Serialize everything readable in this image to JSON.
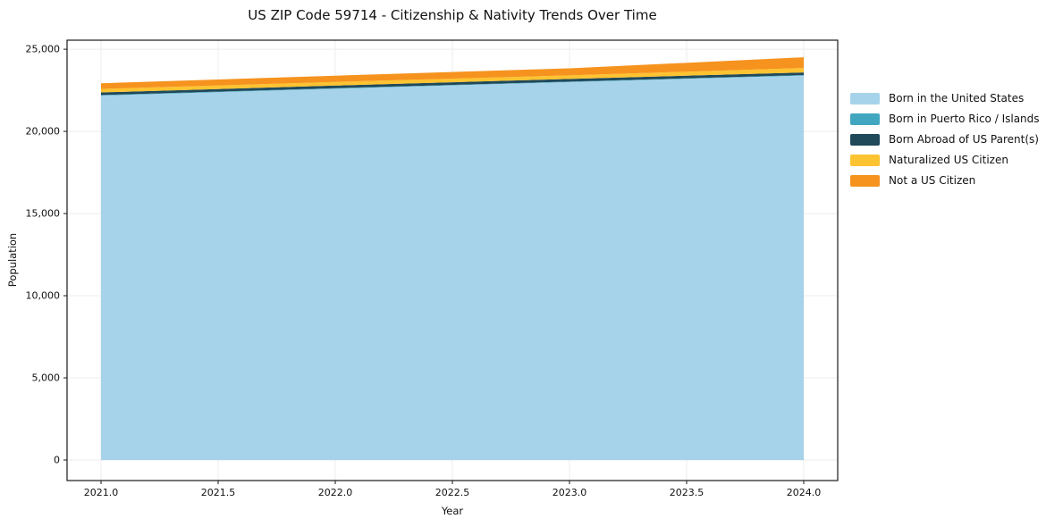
{
  "chart_data": {
    "type": "area",
    "stacked": true,
    "title": "US ZIP Code 59714 - Citizenship & Nativity Trends Over Time",
    "xlabel": "Year",
    "ylabel": "Population",
    "x": [
      2021,
      2022,
      2023,
      2024
    ],
    "series": [
      {
        "name": "Born in the United States",
        "color": "#a6d3ea",
        "values": [
          22180,
          22600,
          23000,
          23400
        ]
      },
      {
        "name": "Born in Puerto Rico / Islands",
        "color": "#41a6c0",
        "values": [
          30,
          30,
          30,
          30
        ]
      },
      {
        "name": "Born Abroad of US Parent(s)",
        "color": "#20495a",
        "values": [
          160,
          160,
          160,
          160
        ]
      },
      {
        "name": "Naturalized US Citizen",
        "color": "#fdc330",
        "values": [
          210,
          220,
          220,
          270
        ]
      },
      {
        "name": "Not a US Citizen",
        "color": "#f6931e",
        "values": [
          350,
          380,
          430,
          650
        ]
      }
    ],
    "xticks": [
      2021.0,
      2021.5,
      2022.0,
      2022.5,
      2023.0,
      2023.5,
      2024.0
    ],
    "xtick_labels": [
      "2021.0",
      "2021.5",
      "2022.0",
      "2022.5",
      "2023.0",
      "2023.5",
      "2024.0"
    ],
    "yticks": [
      0,
      5000,
      10000,
      15000,
      20000,
      25000
    ],
    "ytick_labels": [
      "0",
      "5,000",
      "10,000",
      "15,000",
      "20,000",
      "25,000"
    ],
    "xlim": [
      2020.855,
      2024.145
    ],
    "ylim": [
      -1250,
      25550
    ],
    "grid": true,
    "legend_position": "right",
    "colors": {
      "grid": "#ececec",
      "frame": "#1a1a1a",
      "text": "#111111",
      "background": "#ffffff"
    }
  }
}
